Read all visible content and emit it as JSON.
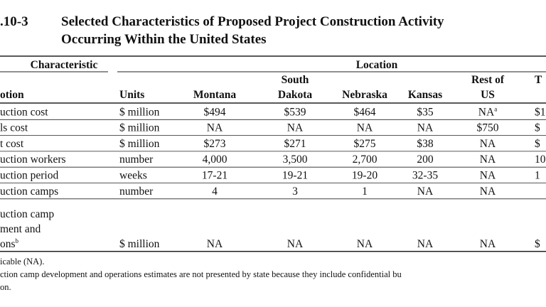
{
  "header": {
    "number": ".10-3",
    "title": [
      "Selected Characteristics of Proposed Project Construction Activity",
      "Occurring Within the United States"
    ]
  },
  "table": {
    "group_headers": [
      "Characteristic",
      "Location"
    ],
    "columns": [
      [
        "otion"
      ],
      [
        "Units"
      ],
      [
        "Montana"
      ],
      [
        "South",
        "Dakota"
      ],
      [
        "Nebraska"
      ],
      [
        "Kansas"
      ],
      [
        "Rest of",
        "US"
      ],
      [
        "T",
        null
      ]
    ],
    "rows": [
      [
        [
          "uction cost"
        ],
        "$ million",
        "$494",
        "$539",
        "$464",
        "$35",
        {
          "text": "NA",
          "sup": "a"
        },
        "$1"
      ],
      [
        [
          "ls cost"
        ],
        "$ million",
        "NA",
        "NA",
        "NA",
        "NA",
        "$750",
        "$"
      ],
      [
        [
          "t cost"
        ],
        "$ million",
        "$273",
        "$271",
        "$275",
        "$38",
        "NA",
        "$"
      ],
      [
        [
          "uction workers"
        ],
        "number",
        "4,000",
        "3,500",
        "2,700",
        "200",
        "NA",
        "10"
      ],
      [
        [
          "uction period"
        ],
        "weeks",
        "17-21",
        "19-21",
        "19-20",
        "32-35",
        "NA",
        "1"
      ],
      [
        [
          "uction camps"
        ],
        "number",
        "4",
        "3",
        "1",
        "NA",
        "NA",
        null
      ],
      [
        [
          "uction camp",
          "ment and",
          {
            "text": "ons",
            "sup": "b"
          }
        ],
        "$ million",
        "NA",
        "NA",
        "NA",
        "NA",
        "NA",
        "$"
      ]
    ]
  },
  "notes": [
    "icable (NA).",
    "ction camp development and operations estimates are not presented by state because they include confidential bu",
    "on."
  ]
}
